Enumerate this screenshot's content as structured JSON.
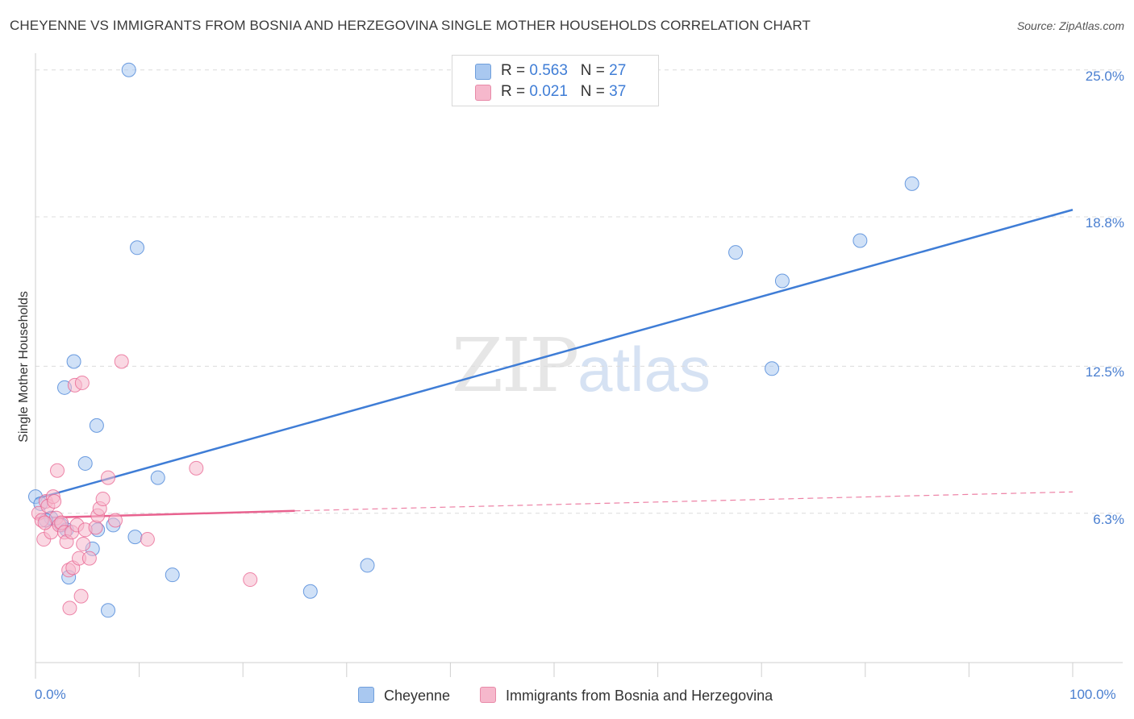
{
  "title": "CHEYENNE VS IMMIGRANTS FROM BOSNIA AND HERZEGOVINA SINGLE MOTHER HOUSEHOLDS CORRELATION CHART",
  "source": "Source: ZipAtlas.com",
  "watermark": {
    "zip": "ZIP",
    "atlas": "atlas"
  },
  "legend": {
    "rows": [
      {
        "r_label": "R = ",
        "r_value": "0.563",
        "n_label": "N = ",
        "n_value": "27",
        "color": "#a9c8f0"
      },
      {
        "r_label": "R = ",
        "r_value": "0.021",
        "n_label": "N = ",
        "n_value": "37",
        "color": "#f6b8cc"
      }
    ]
  },
  "bottom_legend": [
    {
      "label": "Cheyenne",
      "color": "#a9c8f0"
    },
    {
      "label": "Immigrants from Bosnia and Herzegovina",
      "color": "#f6b8cc"
    }
  ],
  "chart_data": {
    "type": "scatter",
    "title": "CHEYENNE VS IMMIGRANTS FROM BOSNIA AND HERZEGOVINA SINGLE MOTHER HOUSEHOLDS CORRELATION CHART",
    "xlabel": "",
    "ylabel": "Single Mother Households",
    "xlim": [
      0,
      100
    ],
    "ylim": [
      0,
      25.5
    ],
    "x_tick_labels": [
      "0.0%",
      "100.0%"
    ],
    "y_ticks": [
      6.3,
      12.5,
      18.8,
      25.0
    ],
    "y_tick_labels": [
      "6.3%",
      "12.5%",
      "18.8%",
      "25.0%"
    ],
    "grid": true,
    "series": [
      {
        "name": "Cheyenne",
        "color": "#3f7dd6",
        "fill": "#a9c8f0",
        "points": [
          [
            0.0,
            7.0
          ],
          [
            0.5,
            6.7
          ],
          [
            1.5,
            6.1
          ],
          [
            2.5,
            5.8
          ],
          [
            3.0,
            5.6
          ],
          [
            2.8,
            11.6
          ],
          [
            3.7,
            12.7
          ],
          [
            3.2,
            3.6
          ],
          [
            4.8,
            8.4
          ],
          [
            5.5,
            4.8
          ],
          [
            6.0,
            5.6
          ],
          [
            5.9,
            10.0
          ],
          [
            7.0,
            2.2
          ],
          [
            7.5,
            5.8
          ],
          [
            9.0,
            25.0
          ],
          [
            9.8,
            17.5
          ],
          [
            9.6,
            5.3
          ],
          [
            11.8,
            7.8
          ],
          [
            13.2,
            3.7
          ],
          [
            26.5,
            3.0
          ],
          [
            32.0,
            4.1
          ],
          [
            67.5,
            17.3
          ],
          [
            72.0,
            16.1
          ],
          [
            71.0,
            12.4
          ],
          [
            79.5,
            17.8
          ],
          [
            84.5,
            20.2
          ],
          [
            1.0,
            6.0
          ]
        ],
        "trend": {
          "x1": 0,
          "y1": 6.9,
          "x2": 100,
          "y2": 19.1,
          "style": "solid"
        }
      },
      {
        "name": "Immigrants from Bosnia and Herzegovina",
        "color": "#e8628f",
        "fill": "#f6b8cc",
        "points": [
          [
            0.3,
            6.3
          ],
          [
            0.6,
            6.0
          ],
          [
            0.8,
            5.2
          ],
          [
            1.0,
            6.8
          ],
          [
            1.2,
            6.6
          ],
          [
            1.5,
            5.5
          ],
          [
            1.7,
            7.0
          ],
          [
            1.8,
            6.8
          ],
          [
            2.0,
            6.1
          ],
          [
            2.1,
            8.1
          ],
          [
            2.3,
            5.8
          ],
          [
            2.5,
            5.9
          ],
          [
            2.8,
            5.5
          ],
          [
            3.0,
            5.1
          ],
          [
            3.2,
            3.9
          ],
          [
            3.3,
            2.3
          ],
          [
            3.5,
            5.5
          ],
          [
            3.6,
            4.0
          ],
          [
            3.8,
            11.7
          ],
          [
            4.0,
            5.8
          ],
          [
            4.2,
            4.4
          ],
          [
            4.4,
            2.8
          ],
          [
            4.5,
            11.8
          ],
          [
            4.6,
            5.0
          ],
          [
            4.8,
            5.6
          ],
          [
            5.2,
            4.4
          ],
          [
            5.8,
            5.7
          ],
          [
            6.0,
            6.2
          ],
          [
            6.2,
            6.5
          ],
          [
            6.5,
            6.9
          ],
          [
            7.0,
            7.8
          ],
          [
            7.7,
            6.0
          ],
          [
            8.3,
            12.7
          ],
          [
            10.8,
            5.2
          ],
          [
            15.5,
            8.2
          ],
          [
            20.7,
            3.5
          ],
          [
            0.9,
            5.9
          ]
        ],
        "trend": {
          "x1": 0,
          "y1": 6.1,
          "x2": 25,
          "y2": 6.4,
          "dash_x2": 100,
          "dash_y2": 7.2,
          "style": "solid-then-dashed"
        }
      }
    ]
  }
}
